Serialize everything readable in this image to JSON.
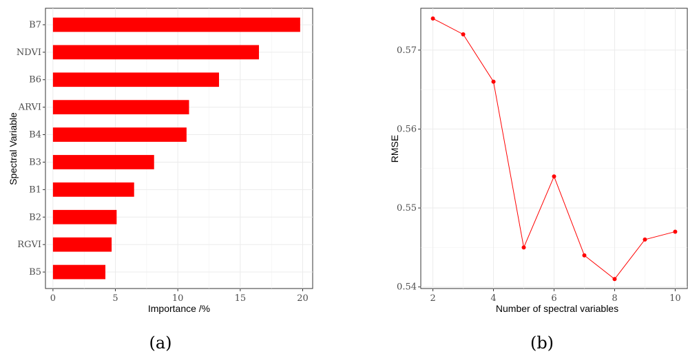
{
  "chart_data": [
    {
      "type": "bar",
      "orientation": "horizontal",
      "panel_label": "(a)",
      "categories": [
        "B7",
        "NDVI",
        "B6",
        "ARVI",
        "B4",
        "B3",
        "B1",
        "B2",
        "RGVI",
        "B5"
      ],
      "values": [
        19.8,
        16.5,
        13.3,
        10.9,
        10.7,
        8.1,
        6.5,
        5.1,
        4.7,
        4.2
      ],
      "xlabel": "Importance /%",
      "ylabel": "Spectral Variable",
      "xlim": [
        -0.6,
        20.8
      ],
      "xticks": [
        0,
        5,
        10,
        15,
        20
      ],
      "grid": true,
      "bar_color": "#ff0000"
    },
    {
      "type": "line",
      "panel_label": "(b)",
      "x": [
        2,
        3,
        4,
        5,
        6,
        7,
        8,
        9,
        10
      ],
      "y": [
        0.574,
        0.572,
        0.566,
        0.545,
        0.554,
        0.544,
        0.541,
        0.546,
        0.547
      ],
      "xlabel": "Number of spectral variables",
      "ylabel": "RMSE",
      "xlim": [
        1.6,
        10.4
      ],
      "ylim": [
        0.5398,
        0.5753
      ],
      "xticks": [
        2,
        4,
        6,
        8,
        10
      ],
      "yticks": [
        "0.54",
        "0.55",
        "0.56",
        "0.57"
      ],
      "grid": true,
      "line_color": "#ff0000"
    }
  ]
}
